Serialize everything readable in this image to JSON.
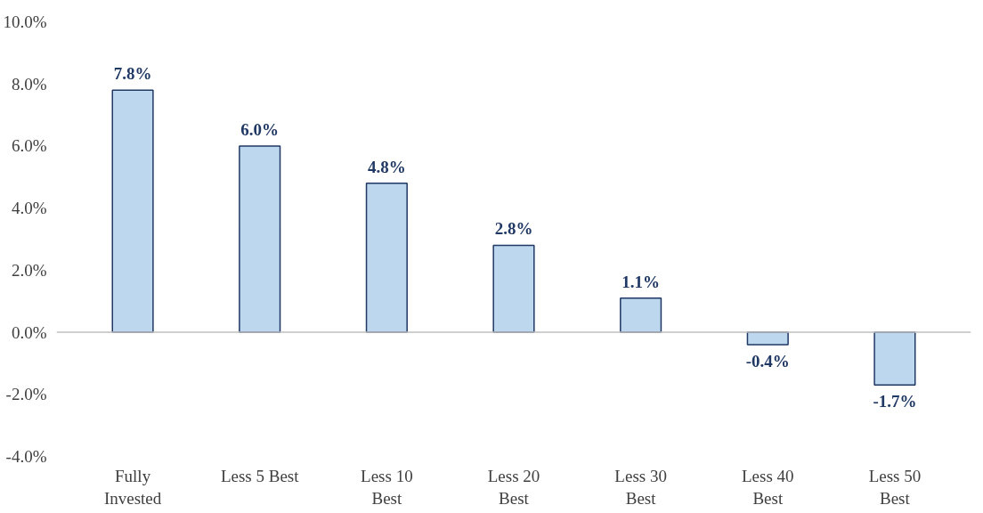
{
  "chart_data": {
    "type": "bar",
    "categories": [
      "Fully\nInvested",
      "Less 5 Best",
      "Less 10\nBest",
      "Less 20\nBest",
      "Less 30\nBest",
      "Less 40\nBest",
      "Less 50\nBest"
    ],
    "values": [
      7.8,
      6.0,
      4.8,
      2.8,
      1.1,
      -0.4,
      -1.7
    ],
    "value_labels": [
      "7.8%",
      "6.0%",
      "4.8%",
      "2.8%",
      "1.1%",
      "-0.4%",
      "-1.7%"
    ],
    "color": "#bdd7ee",
    "ylim": [
      -4,
      10
    ],
    "yticks": [
      {
        "value": -4,
        "label": "-4.0%"
      },
      {
        "value": -2,
        "label": "-2.0%"
      },
      {
        "value": 0,
        "label": "0.0%"
      },
      {
        "value": 2,
        "label": "2.0%"
      },
      {
        "value": 4,
        "label": "4.0%"
      },
      {
        "value": 6,
        "label": "6.0%"
      },
      {
        "value": 8,
        "label": "8.0%"
      },
      {
        "value": 10,
        "label": "10.0%"
      }
    ],
    "ref_lines": [
      {
        "axis": "y",
        "value": 0,
        "color": "#bfbfbf"
      }
    ],
    "grid": false
  }
}
